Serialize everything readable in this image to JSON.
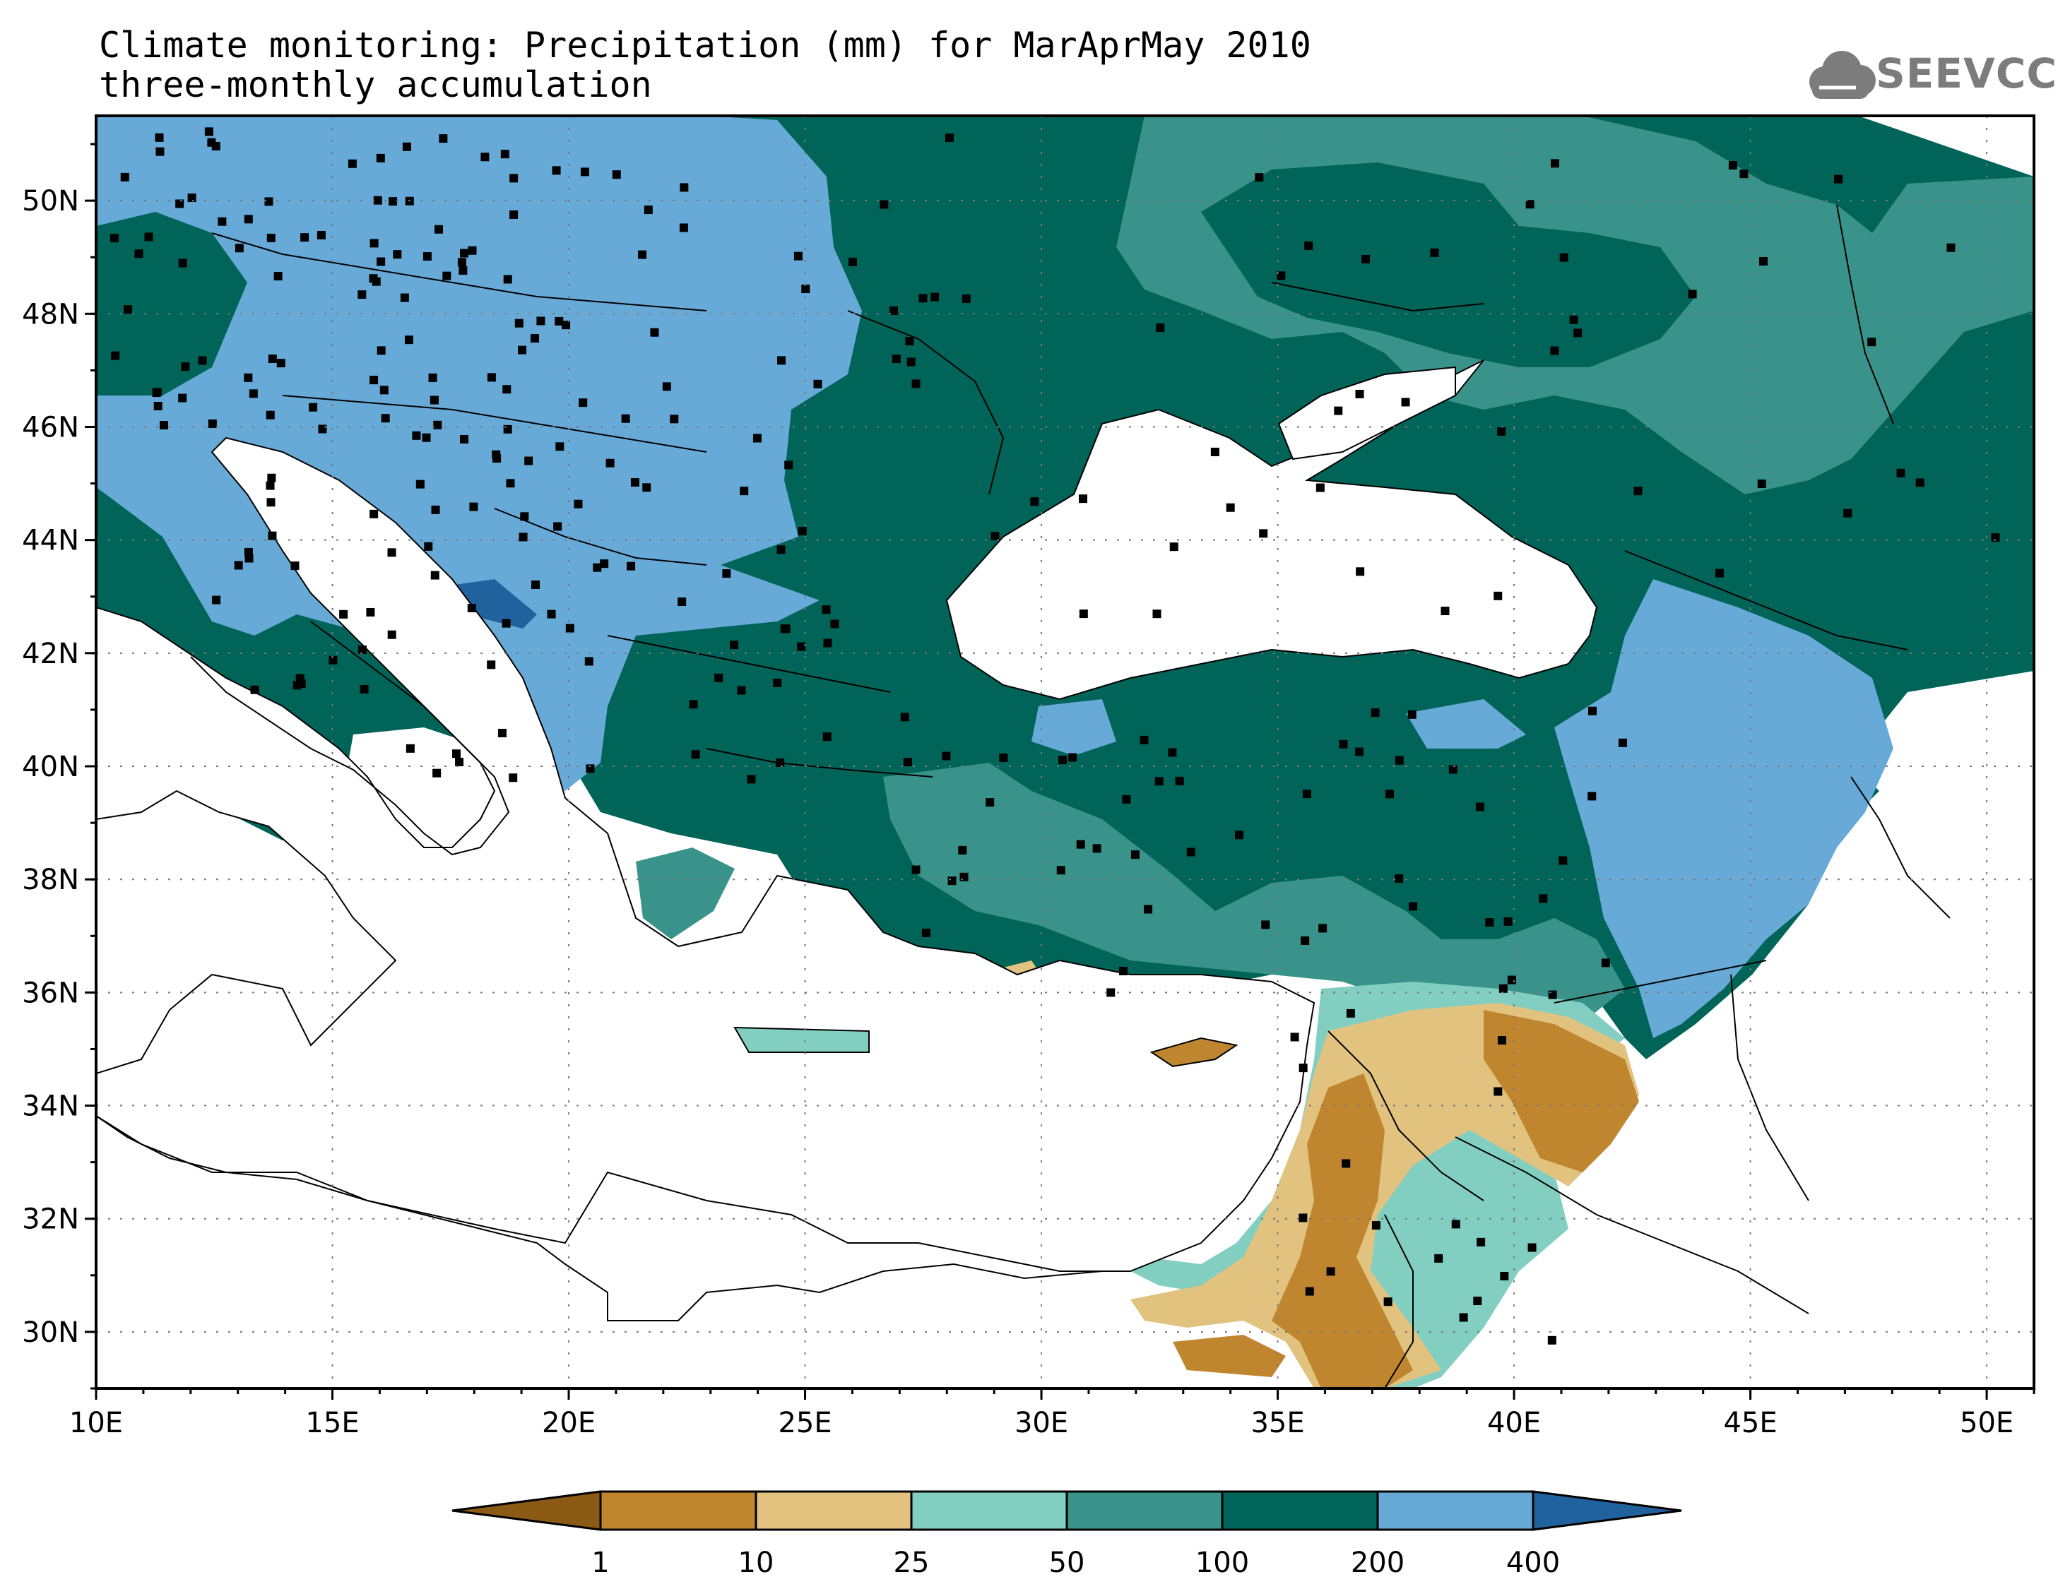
{
  "title": {
    "line1": "Climate monitoring: Precipitation (mm) for MarAprMay 2010",
    "line2": "three-monthly accumulation"
  },
  "logo": {
    "text": "SEEVCCC",
    "icon": "cloud-icon",
    "color": "#7c7c7c"
  },
  "map": {
    "lon_range": [
      10,
      51
    ],
    "lat_range": [
      29,
      51.5
    ],
    "lon_ticks": [
      "10E",
      "15E",
      "20E",
      "25E",
      "30E",
      "35E",
      "40E",
      "45E",
      "50E"
    ],
    "lat_ticks": [
      "30N",
      "32N",
      "34N",
      "36N",
      "38N",
      "40N",
      "42N",
      "44N",
      "46N",
      "48N",
      "50N"
    ],
    "grid": "dotted"
  },
  "legend": {
    "labels": [
      "1",
      "10",
      "25",
      "50",
      "100",
      "200",
      "400"
    ],
    "colors": [
      "#8b5a14",
      "#c0862f",
      "#e2c27f",
      "#82cfc2",
      "#3a938a",
      "#006459",
      "#68aad7",
      "#20629e"
    ]
  }
}
